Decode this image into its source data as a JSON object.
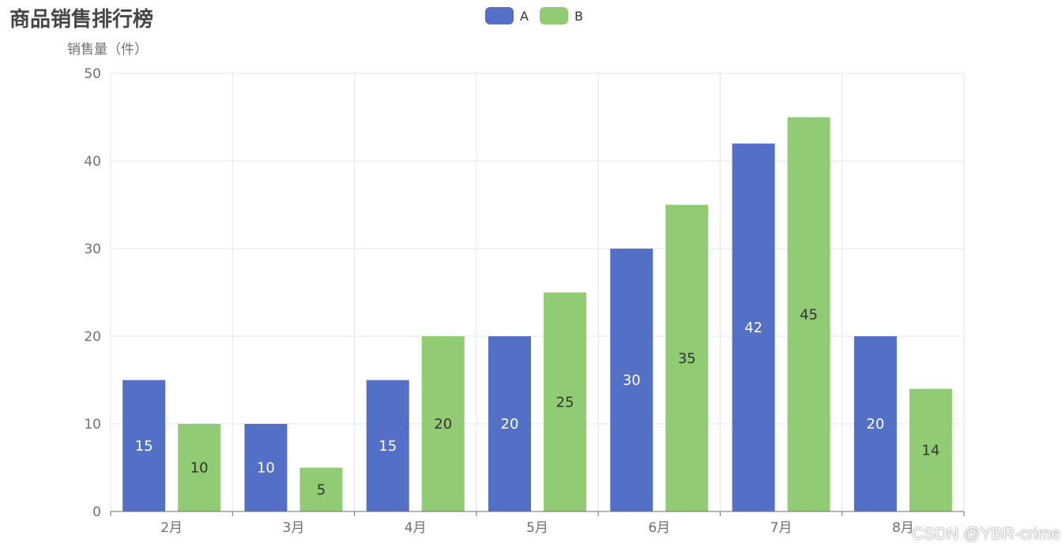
{
  "chart_data": {
    "type": "bar",
    "title": "商品销售排行榜",
    "ylabel": "销售量（件）",
    "xlabel": "",
    "categories": [
      "2月",
      "3月",
      "4月",
      "5月",
      "6月",
      "7月",
      "8月"
    ],
    "series": [
      {
        "name": "A",
        "values": [
          15,
          10,
          15,
          20,
          30,
          42,
          20
        ],
        "color": "#5470c6",
        "label_color": "#ffffff"
      },
      {
        "name": "B",
        "values": [
          10,
          5,
          20,
          25,
          35,
          45,
          14
        ],
        "color": "#91cc75",
        "label_color": "#333333"
      }
    ],
    "ylim": [
      0,
      50
    ],
    "yticks": [
      0,
      10,
      20,
      30,
      40,
      50
    ],
    "grid": true,
    "legend_position": "top-center",
    "data_labels": "inside-center"
  },
  "watermark": "CSDN @YBR-crime"
}
